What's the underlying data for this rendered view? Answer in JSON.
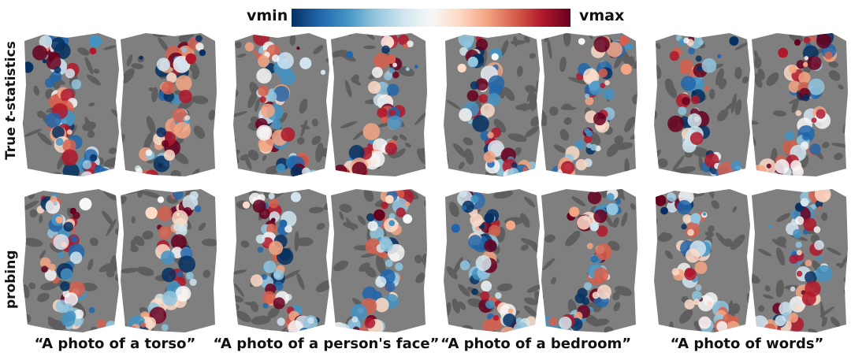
{
  "colorbar": {
    "min_label": "vmin",
    "max_label": "vmax",
    "colormap": [
      "#053061",
      "#2166ac",
      "#4393c3",
      "#92c5de",
      "#d1e5f0",
      "#f7f7f7",
      "#fddbc7",
      "#f4a582",
      "#d6604d",
      "#b2182b",
      "#67001f"
    ]
  },
  "rows": [
    {
      "label_prefix": "True ",
      "label_italic": "t",
      "label_suffix": "-statistics"
    },
    {
      "label_prefix": "probing",
      "label_italic": "",
      "label_suffix": ""
    }
  ],
  "columns": [
    {
      "caption": "“A photo of a torso”"
    },
    {
      "caption": "“A photo of a person's face”"
    },
    {
      "caption": "“A photo of a bedroom”"
    },
    {
      "caption": "“A photo of words”"
    }
  ],
  "colors": {
    "cortex_base": "#7f7f7f",
    "cortex_sulci": "#5e5e5e"
  }
}
